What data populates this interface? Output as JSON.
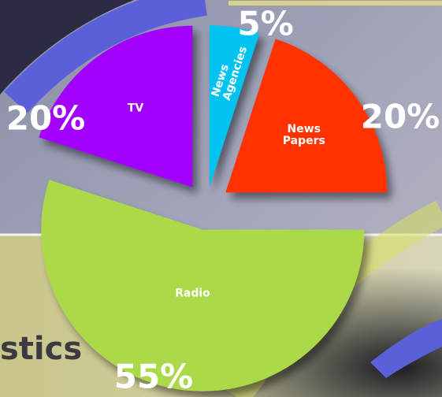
{
  "background_text": "stics",
  "chart_data": {
    "type": "pie",
    "categories": [
      "News Agencies",
      "News Papers",
      "Radio",
      "TV"
    ],
    "values": [
      5,
      20,
      55,
      20
    ],
    "value_labels": [
      "5%",
      "20%",
      "55%",
      "20%"
    ],
    "colors": [
      "#00c3f2",
      "#ff3300",
      "#abd94a",
      "#a100ff"
    ]
  }
}
